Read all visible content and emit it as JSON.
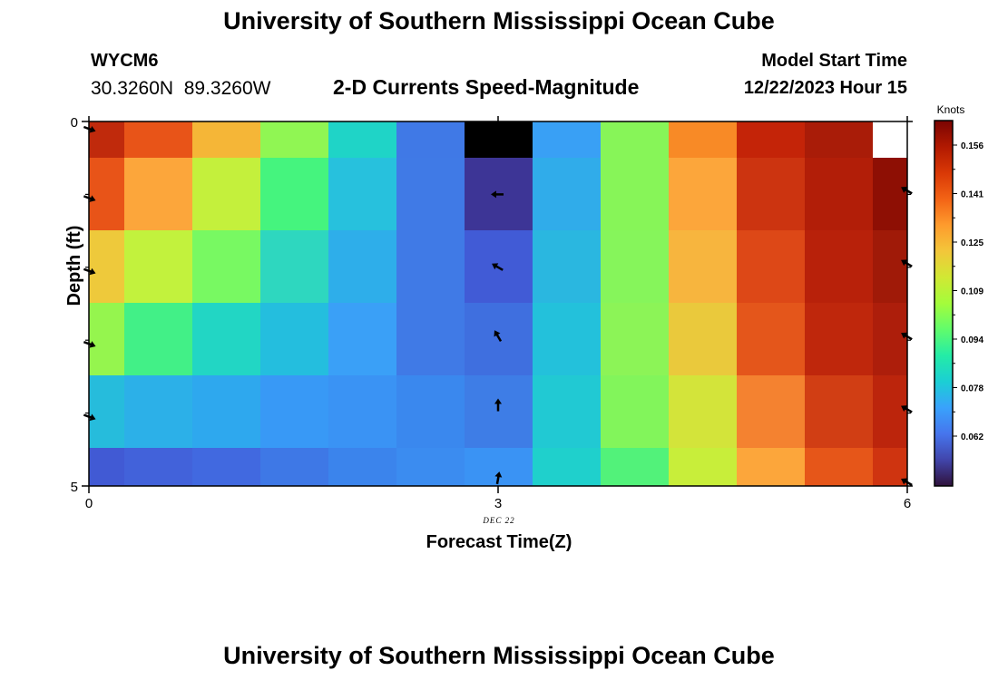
{
  "header": {
    "title": "University of Southern Mississippi Ocean Cube",
    "station_id": "WYCM6",
    "coords": "30.3260N  89.3260W",
    "subtitle": "2-D Currents Speed-Magnitude",
    "model_label": "Model Start Time",
    "model_time": "12/22/2023 Hour 15"
  },
  "footer": {
    "title": "University of Southern Mississippi Ocean Cube"
  },
  "chart_data": {
    "type": "heatmap",
    "xlabel": "Forecast Time(Z)",
    "ylabel": "Depth (ft)",
    "date_label": "DEC 22",
    "x_ticks": [
      0,
      3,
      6
    ],
    "y_ticks": [
      0,
      5
    ],
    "xlim": [
      0,
      6
    ],
    "ylim": [
      0,
      5
    ],
    "colorbar": {
      "title": "Knots",
      "ticks": [
        "0.156",
        "0.141",
        "0.125",
        "0.109",
        "0.094",
        "0.078",
        "0.062"
      ],
      "stops": [
        "#30123b",
        "#4145ab",
        "#4675ed",
        "#39a2fc",
        "#1bcfd4",
        "#24eca6",
        "#61fc6c",
        "#a4fc3b",
        "#d1e834",
        "#f3c63a",
        "#fe9b2d",
        "#f36315",
        "#d93806",
        "#b11901",
        "#7a0402"
      ]
    },
    "columns_x": [
      0,
      0.5,
      1,
      1.5,
      2,
      2.5,
      3,
      3.5,
      4,
      4.5,
      5,
      5.5,
      6
    ],
    "rows_depth": [
      0,
      1,
      2,
      3,
      4,
      5
    ],
    "cells": [
      [
        "#c02a0c",
        "#e85418",
        "#f5b637",
        "#90f653",
        "#1fd4c7",
        "#4079e6",
        "#000000",
        "#39a0f5",
        "#87f558",
        "#f88a26",
        "#c42408",
        "#a91c08",
        "#ffffff"
      ],
      [
        "#e85418",
        "#fca63b",
        "#c4f03c",
        "#45f47e",
        "#27c1dd",
        "#407ae6",
        "#3d3596",
        "#30acea",
        "#87f558",
        "#fca63b",
        "#cc3410",
        "#b21e08",
        "#8e0f04"
      ],
      [
        "#eec93b",
        "#c2f23d",
        "#78f962",
        "#2ed7bf",
        "#2eaeea",
        "#407ae6",
        "#415bd6",
        "#2ab7e0",
        "#86f55b",
        "#f7b53e",
        "#dd4817",
        "#b8210a",
        "#a01a08"
      ],
      [
        "#95f54e",
        "#42f087",
        "#22d6c4",
        "#24bede",
        "#3aa0f7",
        "#407ae6",
        "#3f6fdf",
        "#23c1db",
        "#8cf457",
        "#eac93c",
        "#e4561b",
        "#bf270c",
        "#ad1e0b"
      ],
      [
        "#26bcdc",
        "#2cb0e8",
        "#2ea8ee",
        "#3899f6",
        "#3a93f4",
        "#3a88ee",
        "#3e7de6",
        "#21c9d3",
        "#82f55b",
        "#d3e43a",
        "#f48230",
        "#d13e14",
        "#bc250c"
      ],
      [
        "#415ad4",
        "#4262da",
        "#4169e0",
        "#3e78e6",
        "#3b84ec",
        "#3b8cf0",
        "#3a93f4",
        "#1fd0cc",
        "#52f27a",
        "#c8ee3a",
        "#fca63b",
        "#e65619",
        "#cf3410"
      ]
    ],
    "vectors": [
      {
        "t": 0,
        "depth": 0.1,
        "dir": 110
      },
      {
        "t": 0,
        "depth": 1.05,
        "dir": 110
      },
      {
        "t": 0,
        "depth": 2.05,
        "dir": 110
      },
      {
        "t": 0,
        "depth": 3.05,
        "dir": 110
      },
      {
        "t": 0,
        "depth": 4.05,
        "dir": 110
      },
      {
        "t": 3,
        "depth": 1.0,
        "dir": 270
      },
      {
        "t": 3,
        "depth": 2.0,
        "dir": 300
      },
      {
        "t": 3,
        "depth": 2.95,
        "dir": 330
      },
      {
        "t": 3,
        "depth": 3.9,
        "dir": 0
      },
      {
        "t": 3,
        "depth": 4.9,
        "dir": 10
      },
      {
        "t": 6,
        "depth": 0.95,
        "dir": 300
      },
      {
        "t": 6,
        "depth": 1.95,
        "dir": 300
      },
      {
        "t": 6,
        "depth": 2.95,
        "dir": 300
      },
      {
        "t": 6,
        "depth": 3.95,
        "dir": 300
      },
      {
        "t": 6,
        "depth": 4.95,
        "dir": 300
      }
    ]
  }
}
